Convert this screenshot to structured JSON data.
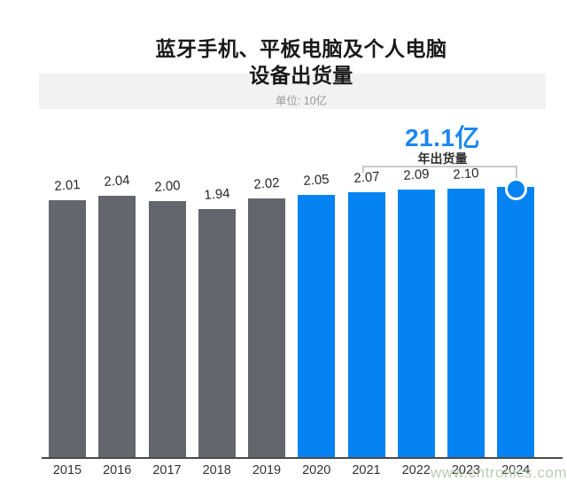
{
  "title": {
    "line1": "蓝牙手机、平板电脑及个人电脑",
    "line2": "设备出货量",
    "subtitle": "单位: 10亿"
  },
  "callout": {
    "value": "21.1亿",
    "label": "年出货量"
  },
  "watermark": "www.cntronics.com",
  "colors": {
    "bar_gray": "#63666c",
    "bar_blue": "#0583f2",
    "accent_blue_text": "#1c86f2",
    "title_band": "#f2f2f2",
    "axis": "#4a4a4a",
    "bracket": "#c9c9c9",
    "watermark": "#adc4a5"
  },
  "chart_data": {
    "type": "bar",
    "title": "蓝牙手机、平板电脑及个人电脑设备出货量",
    "unit": "单位: 10亿",
    "categories": [
      "2015",
      "2016",
      "2017",
      "2018",
      "2019",
      "2020",
      "2021",
      "2022",
      "2023",
      "2024"
    ],
    "values": [
      2.01,
      2.04,
      2.0,
      1.94,
      2.02,
      2.05,
      2.07,
      2.09,
      2.1,
      2.11
    ],
    "bar_labels": [
      "2.01",
      "2.04",
      "2.00",
      "1.94",
      "2.02",
      "2.05",
      "2.07",
      "2.09",
      "2.10",
      ""
    ],
    "bar_color_groups": [
      "gray",
      "gray",
      "gray",
      "gray",
      "gray",
      "blue",
      "blue",
      "blue",
      "blue",
      "blue"
    ],
    "highlight": {
      "category": "2024",
      "value": 2.11,
      "label": "21.1亿",
      "sublabel": "年出货量",
      "marker": "circle"
    },
    "ylim": [
      0,
      2.2
    ],
    "grid": false,
    "legend": false,
    "xlabel": "",
    "ylabel": ""
  }
}
